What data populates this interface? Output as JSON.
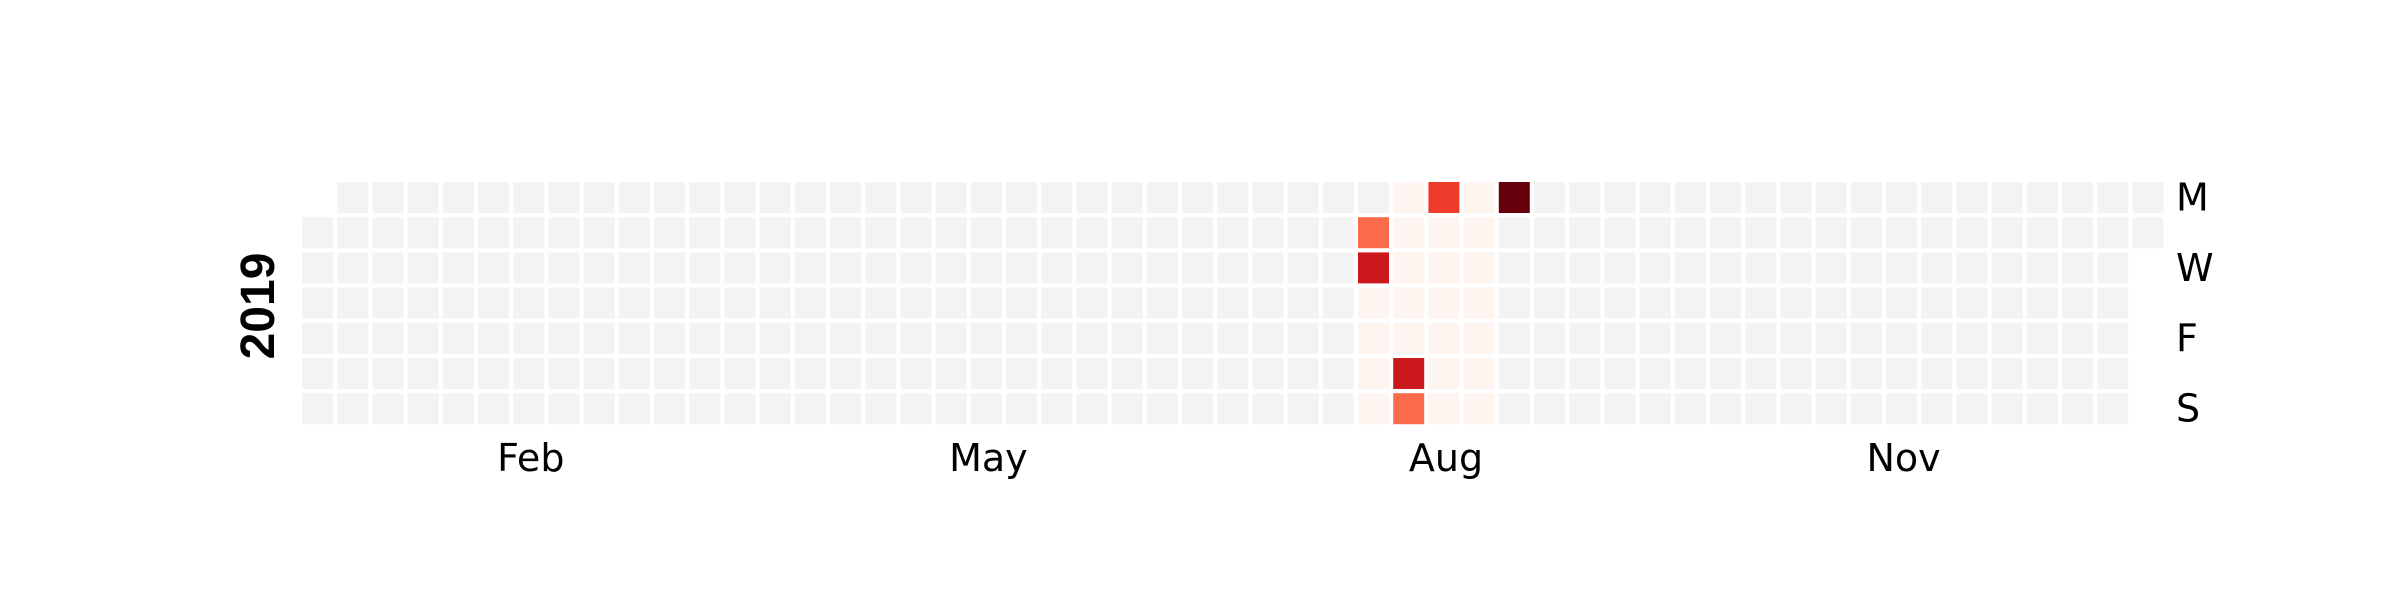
{
  "chart_data": {
    "type": "heatmap",
    "year_label": "2019",
    "start_date": "2019-01-01",
    "end_date": "2019-12-31",
    "month_labels": [
      "Feb",
      "May",
      "Aug",
      "Nov"
    ],
    "month_label_values": [
      "2019-02",
      "2019-05",
      "2019-08",
      "2019-11"
    ],
    "weekday_labels": [
      "M",
      "W",
      "F",
      "S"
    ],
    "weekday_label_rows": [
      0,
      2,
      4,
      6
    ],
    "colors": {
      "empty": "#f3f3f3",
      "scale": [
        "#fff5f0",
        "#fc9272",
        "#fb6a4a",
        "#ef3b2c",
        "#cb181d",
        "#a50f15",
        "#67000d"
      ]
    },
    "nonzero_range": {
      "start": "2019-07-30",
      "end": "2019-08-25",
      "value": 0.05
    },
    "values": [
      {
        "date": "2019-07-30",
        "value": 3.5
      },
      {
        "date": "2019-07-31",
        "value": 6.5
      },
      {
        "date": "2019-08-10",
        "value": 7.0
      },
      {
        "date": "2019-08-11",
        "value": 3.0
      },
      {
        "date": "2019-08-12",
        "value": 5.5
      },
      {
        "date": "2019-08-26",
        "value": 10.0
      }
    ],
    "vmax": 10.0
  }
}
